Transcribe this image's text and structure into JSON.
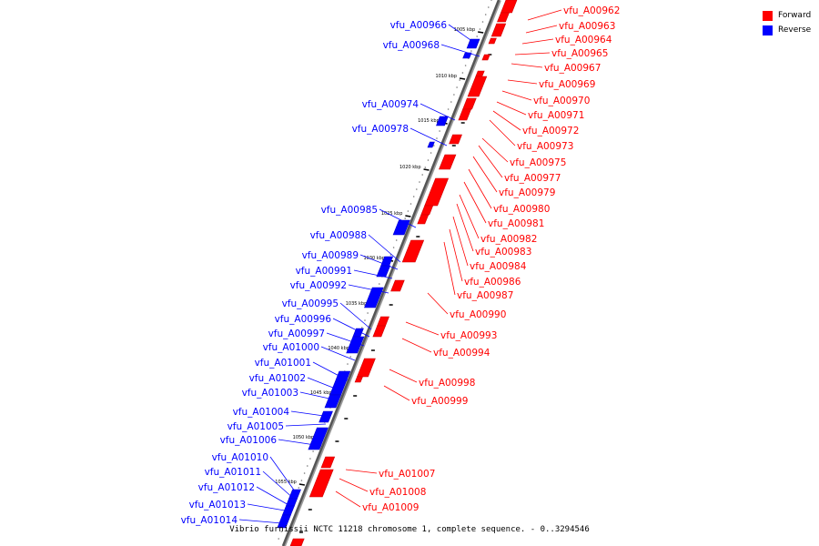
{
  "legend": {
    "forward_label": "Forward",
    "reverse_label": "Reverse",
    "forward_color": "#ff0000",
    "reverse_color": "#0000ff"
  },
  "caption": "Vibrio furnissii NCTC 11218 chromosome 1, complete sequence. - 0..3294546",
  "ticks": [
    "1005 kbp",
    "1010 kbp",
    "1015 kbp",
    "1020 kbp",
    "1025 kbp",
    "1030 kbp",
    "1035 kbp",
    "1040 kbp",
    "1045 kbp",
    "1050 kbp",
    "1055 kbp"
  ],
  "reverse_genes": [
    "vfu_A00966",
    "vfu_A00968",
    "vfu_A00974",
    "vfu_A00978",
    "vfu_A00985",
    "vfu_A00988",
    "vfu_A00989",
    "vfu_A00991",
    "vfu_A00992",
    "vfu_A00995",
    "vfu_A00996",
    "vfu_A00997",
    "vfu_A01000",
    "vfu_A01001",
    "vfu_A01002",
    "vfu_A01003",
    "vfu_A01004",
    "vfu_A01005",
    "vfu_A01006",
    "vfu_A01010",
    "vfu_A01011",
    "vfu_A01012",
    "vfu_A01013",
    "vfu_A01014"
  ],
  "forward_genes": [
    "vfu_A00962",
    "vfu_A00963",
    "vfu_A00964",
    "vfu_A00965",
    "vfu_A00967",
    "vfu_A00969",
    "vfu_A00970",
    "vfu_A00971",
    "vfu_A00972",
    "vfu_A00973",
    "vfu_A00975",
    "vfu_A00977",
    "vfu_A00979",
    "vfu_A00980",
    "vfu_A00981",
    "vfu_A00982",
    "vfu_A00983",
    "vfu_A00984",
    "vfu_A00986",
    "vfu_A00987",
    "vfu_A00990",
    "vfu_A00993",
    "vfu_A00994",
    "vfu_A00998",
    "vfu_A00999",
    "vfu_A01007",
    "vfu_A01008",
    "vfu_A01009"
  ]
}
